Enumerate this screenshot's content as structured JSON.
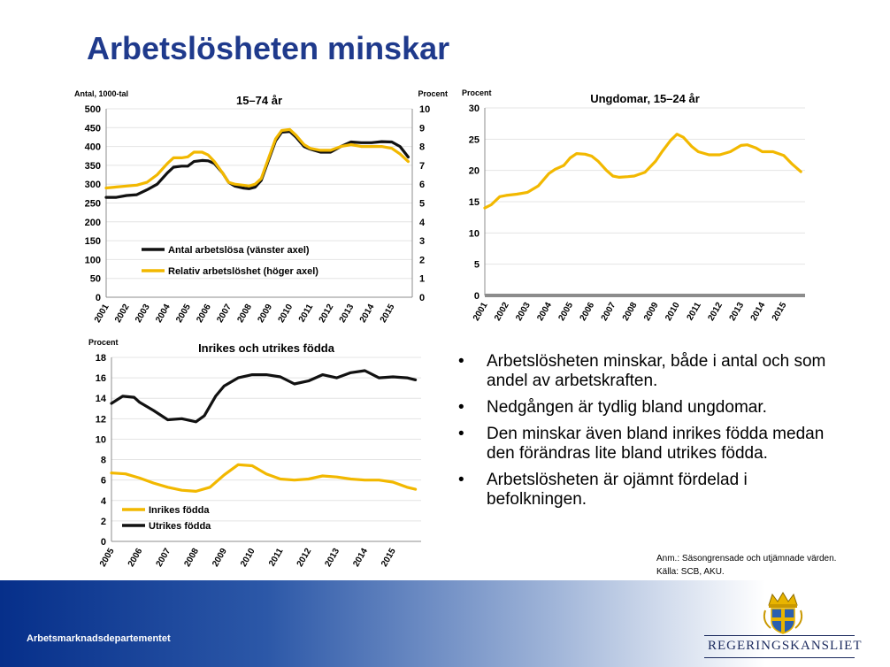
{
  "slide_title": "Arbetslösheten minskar",
  "colors": {
    "yellow": "#f2b800",
    "black": "#111111",
    "title": "#1f3a8c",
    "axis": "#8c8c8c"
  },
  "chart_data": [
    {
      "type": "line",
      "title": "15–74 år",
      "ylabel_left": "Antal, 1000-tal",
      "ylabel_right": "Procent",
      "ylim_left": [
        0,
        500
      ],
      "ylim_right": [
        0,
        10
      ],
      "yticks_left": [
        "0",
        "50",
        "100",
        "150",
        "200",
        "250",
        "300",
        "350",
        "400",
        "450",
        "500"
      ],
      "yticks_right": [
        "0",
        "1",
        "2",
        "3",
        "4",
        "5",
        "6",
        "7",
        "8",
        "9",
        "10"
      ],
      "x_labels": [
        "2001",
        "2002",
        "2003",
        "2004",
        "2005",
        "2006",
        "2007",
        "2008",
        "2009",
        "2010",
        "2011",
        "2012",
        "2013",
        "2014",
        "2015"
      ],
      "x_range": [
        2001,
        2016
      ],
      "series": [
        {
          "name": "Antal arbetslösa (vänster axel)",
          "axis": "left",
          "color": "#111111",
          "x": [
            2001,
            2001.5,
            2002,
            2002.5,
            2003,
            2003.5,
            2004,
            2004.3,
            2004.7,
            2005,
            2005.3,
            2005.7,
            2006,
            2006.3,
            2006.7,
            2007,
            2007.3,
            2007.7,
            2008,
            2008.3,
            2008.6,
            2009,
            2009.3,
            2009.6,
            2010,
            2010.3,
            2010.7,
            2011,
            2011.5,
            2012,
            2012.5,
            2013,
            2013.5,
            2014,
            2014.5,
            2015,
            2015.4,
            2015.8
          ],
          "values": [
            265,
            265,
            270,
            272,
            285,
            300,
            330,
            345,
            348,
            348,
            360,
            363,
            362,
            355,
            330,
            305,
            295,
            290,
            288,
            292,
            310,
            370,
            415,
            438,
            440,
            425,
            400,
            393,
            385,
            385,
            400,
            412,
            410,
            410,
            413,
            412,
            400,
            372
          ]
        },
        {
          "name": "Relativ arbetslöshet (höger axel)",
          "axis": "right",
          "color": "#f2b800",
          "x": [
            2001,
            2001.5,
            2002,
            2002.5,
            2003,
            2003.5,
            2004,
            2004.3,
            2004.7,
            2005,
            2005.3,
            2005.7,
            2006,
            2006.3,
            2006.7,
            2007,
            2007.3,
            2007.7,
            2008,
            2008.3,
            2008.6,
            2009,
            2009.3,
            2009.6,
            2010,
            2010.3,
            2010.7,
            2011,
            2011.5,
            2012,
            2012.5,
            2013,
            2013.5,
            2014,
            2014.5,
            2015,
            2015.4,
            2015.8
          ],
          "values": [
            5.8,
            5.85,
            5.9,
            5.95,
            6.1,
            6.5,
            7.1,
            7.4,
            7.4,
            7.45,
            7.7,
            7.7,
            7.55,
            7.2,
            6.6,
            6.1,
            6.0,
            5.95,
            5.9,
            6.0,
            6.3,
            7.5,
            8.4,
            8.85,
            8.9,
            8.6,
            8.1,
            7.9,
            7.8,
            7.8,
            8.0,
            8.1,
            8.0,
            8.0,
            8.0,
            7.9,
            7.6,
            7.2
          ]
        }
      ]
    },
    {
      "type": "line",
      "title": "Ungdomar, 15–24 år",
      "ylabel": "Procent",
      "ylim": [
        0,
        30
      ],
      "yticks": [
        "0",
        "5",
        "10",
        "15",
        "20",
        "25",
        "30"
      ],
      "x_labels": [
        "2001",
        "2002",
        "2003",
        "2004",
        "2005",
        "2006",
        "2007",
        "2008",
        "2009",
        "2010",
        "2011",
        "2012",
        "2013",
        "2014",
        "2015"
      ],
      "x_range": [
        2001,
        2016
      ],
      "series": [
        {
          "name": "Ungdomar, 15–24 år",
          "color": "#f2b800",
          "x": [
            2001,
            2001.3,
            2001.7,
            2002,
            2002.5,
            2003,
            2003.5,
            2004,
            2004.3,
            2004.7,
            2005,
            2005.3,
            2005.7,
            2006,
            2006.3,
            2006.7,
            2007,
            2007.3,
            2007.7,
            2008,
            2008.5,
            2009,
            2009.3,
            2009.7,
            2010,
            2010.3,
            2010.7,
            2011,
            2011.5,
            2012,
            2012.5,
            2013,
            2013.3,
            2013.7,
            2014,
            2014.5,
            2015,
            2015.4,
            2015.8
          ],
          "values": [
            14.0,
            14.5,
            15.8,
            16.0,
            16.2,
            16.5,
            17.5,
            19.5,
            20.2,
            20.8,
            22.0,
            22.7,
            22.6,
            22.3,
            21.5,
            20.0,
            19.1,
            18.9,
            19.0,
            19.1,
            19.7,
            21.5,
            23.0,
            24.8,
            25.8,
            25.3,
            23.8,
            23.0,
            22.5,
            22.5,
            23.0,
            24.0,
            24.1,
            23.6,
            23.0,
            23.0,
            22.4,
            21.0,
            19.8
          ]
        }
      ]
    },
    {
      "type": "line",
      "title": "Inrikes och utrikes födda",
      "ylabel": "Procent",
      "ylim": [
        0,
        18
      ],
      "yticks": [
        "0",
        "2",
        "4",
        "6",
        "8",
        "10",
        "12",
        "14",
        "16",
        "18"
      ],
      "x_labels": [
        "2005",
        "2006",
        "2007",
        "2008",
        "2009",
        "2010",
        "2011",
        "2012",
        "2013",
        "2014",
        "2015"
      ],
      "x_range": [
        2005,
        2016
      ],
      "series": [
        {
          "name": "Inrikes födda",
          "color": "#f2b800",
          "x": [
            2005,
            2005.5,
            2006,
            2006.5,
            2007,
            2007.5,
            2008,
            2008.5,
            2009,
            2009.5,
            2010,
            2010.5,
            2011,
            2011.5,
            2012,
            2012.5,
            2013,
            2013.5,
            2014,
            2014.5,
            2015,
            2015.5,
            2015.8
          ],
          "values": [
            6.7,
            6.6,
            6.2,
            5.7,
            5.3,
            5.0,
            4.9,
            5.3,
            6.5,
            7.5,
            7.4,
            6.6,
            6.1,
            6.0,
            6.1,
            6.4,
            6.3,
            6.1,
            6.0,
            6.0,
            5.8,
            5.3,
            5.1
          ]
        },
        {
          "name": "Utrikes födda",
          "color": "#111111",
          "x": [
            2005,
            2005.4,
            2005.8,
            2006,
            2006.5,
            2007,
            2007.5,
            2008,
            2008.3,
            2008.7,
            2009,
            2009.5,
            2010,
            2010.5,
            2011,
            2011.5,
            2012,
            2012.5,
            2013,
            2013.5,
            2014,
            2014.5,
            2015,
            2015.5,
            2015.8
          ],
          "values": [
            13.5,
            14.2,
            14.1,
            13.6,
            12.8,
            11.9,
            12.0,
            11.7,
            12.3,
            14.2,
            15.2,
            16.0,
            16.3,
            16.3,
            16.1,
            15.4,
            15.7,
            16.3,
            16.0,
            16.5,
            16.7,
            16.0,
            16.1,
            16.0,
            15.8
          ]
        }
      ]
    }
  ],
  "bullets": [
    "Arbetslösheten minskar, både i antal och som andel av arbetskraften.",
    "Nedgången är tydlig bland ungdomar.",
    "Den minskar även bland inrikes födda medan den förändras lite bland utrikes födda.",
    "Arbetslösheten är ojämnt fördelad i befolkningen."
  ],
  "bullet_symbol": "•",
  "note_line1": "Anm.: Säsongrensade och utjämnade värden.",
  "note_line2": "Källa: SCB, AKU.",
  "footer_department": "Arbetsmarknadsdepartementet",
  "logo_text": "REGERINGSKANSLIET"
}
